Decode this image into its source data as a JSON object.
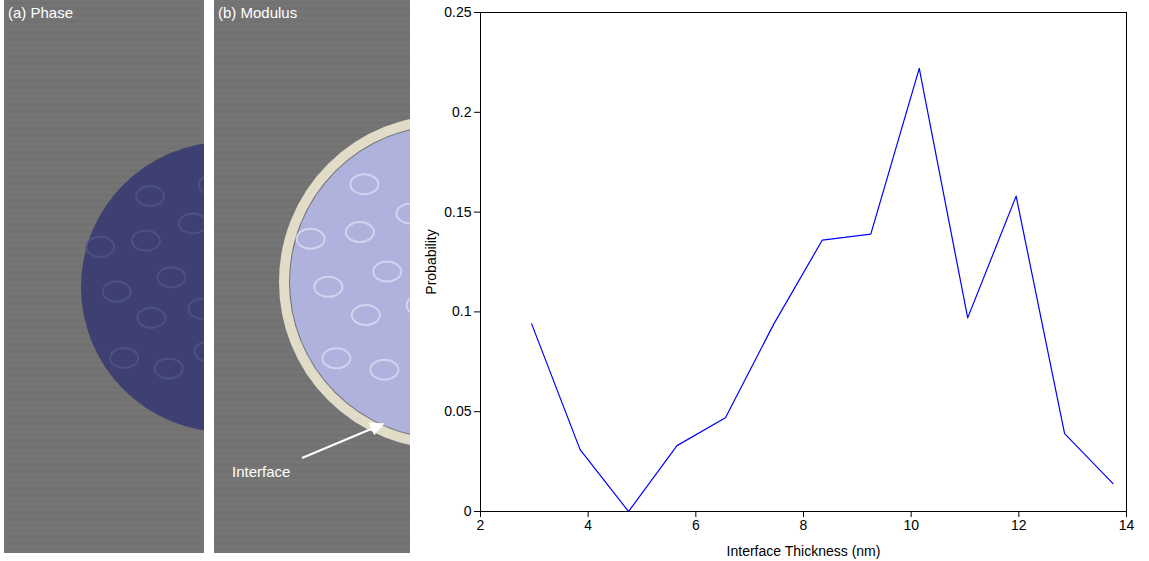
{
  "chart_data": {
    "type": "line",
    "x_label": "Interface Thickness (nm)",
    "y_label": "Probability",
    "x": [
      2.95,
      3.85,
      4.75,
      5.65,
      6.55,
      7.45,
      8.35,
      9.25,
      10.15,
      11.05,
      11.95,
      12.85,
      13.75
    ],
    "values": [
      0.094,
      0.031,
      0.0,
      0.033,
      0.047,
      0.094,
      0.136,
      0.139,
      0.222,
      0.097,
      0.158,
      0.039,
      0.014
    ],
    "color": "#0000ff",
    "xlim": [
      2,
      14
    ],
    "xticks": [
      2,
      4,
      6,
      8,
      10,
      12,
      14
    ],
    "ylim": [
      0,
      0.25
    ],
    "yticks": [
      0,
      0.05,
      0.1,
      0.15,
      0.2,
      0.25
    ],
    "grid": false
  },
  "panels": [
    {
      "label": "(a) Phase"
    },
    {
      "label": "(b) Modulus",
      "annotation": "Interface"
    }
  ]
}
